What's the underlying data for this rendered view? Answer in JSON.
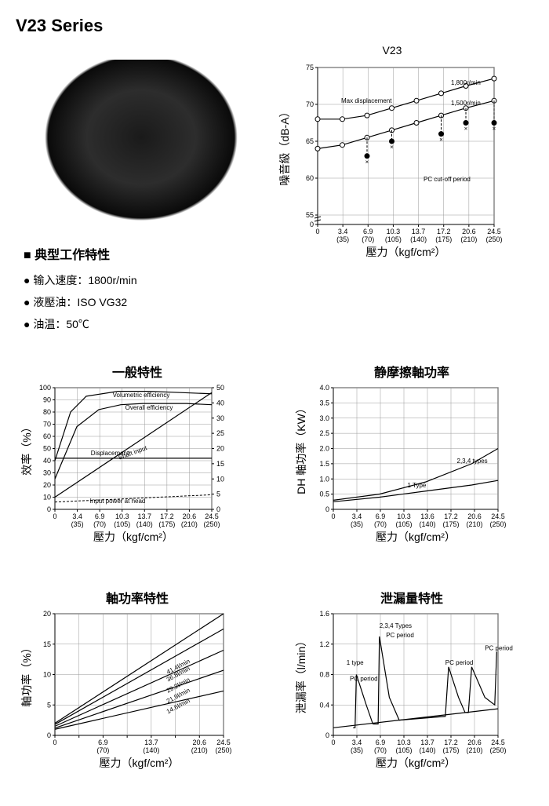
{
  "title": "V23 Series",
  "specs": {
    "heading": "典型工作特性",
    "items": [
      "输入速度：1800r/min",
      "液壓油：ISO VG32",
      "油温：50℃"
    ]
  },
  "noise_chart": {
    "title": "V23",
    "ylabel": "噪音級（dB-A）",
    "xlabel": "壓力（kgf/cm²）",
    "yticks": [
      0,
      55,
      60,
      65,
      70,
      75
    ],
    "xticks_mpa": [
      "0",
      "3.4",
      "6.9",
      "10.3",
      "13.7",
      "17.2",
      "20.6",
      "24.5"
    ],
    "xticks_kgf": [
      "",
      "(35)",
      "(70)",
      "(105)",
      "(140)",
      "(175)",
      "(210)",
      "(250)"
    ],
    "annotations": [
      "Max displacement",
      "1,800r/min",
      "1,500r/min",
      "PC cut-off period"
    ],
    "series1": [
      [
        0,
        68
      ],
      [
        35,
        68
      ],
      [
        70,
        68.5
      ],
      [
        105,
        69.5
      ],
      [
        140,
        70.5
      ],
      [
        175,
        71.5
      ],
      [
        210,
        72.5
      ],
      [
        250,
        73.5
      ]
    ],
    "series2": [
      [
        0,
        64
      ],
      [
        35,
        64.5
      ],
      [
        70,
        65.5
      ],
      [
        105,
        66.5
      ],
      [
        140,
        67.5
      ],
      [
        175,
        68.5
      ],
      [
        210,
        69.5
      ],
      [
        250,
        70.5
      ]
    ],
    "cutoff_pts": [
      [
        70,
        63
      ],
      [
        105,
        65
      ],
      [
        175,
        66
      ],
      [
        210,
        67.5
      ],
      [
        250,
        67.5
      ]
    ],
    "colors": {
      "line": "#000000",
      "marker_open": "#ffffff",
      "marker_fill": "#000000"
    }
  },
  "general_chart": {
    "title": "一般特性",
    "ylabel": "效率（%）",
    "xlabel": "壓力（kgf/cm²）",
    "yticks": [
      0,
      10,
      20,
      30,
      40,
      50,
      60,
      70,
      80,
      90,
      100
    ],
    "y2ticks": [
      0,
      5,
      10,
      15,
      20,
      25,
      30,
      40,
      50
    ],
    "xticks_mpa": [
      "0",
      "3.4",
      "6.9",
      "10.3",
      "13.7",
      "17.2",
      "20.6",
      "24.5"
    ],
    "xticks_kgf": [
      "",
      "(35)",
      "(70)",
      "(105)",
      "(140)",
      "(175)",
      "(210)",
      "(250)"
    ],
    "annotations": [
      "Volumetric efficiency",
      "Overall efficiency",
      "Displacement",
      "Shaft input",
      "Input power at head"
    ],
    "vol_eff": [
      [
        0,
        40
      ],
      [
        25,
        80
      ],
      [
        50,
        93
      ],
      [
        100,
        97
      ],
      [
        150,
        97
      ],
      [
        200,
        96
      ],
      [
        250,
        95
      ]
    ],
    "ovr_eff": [
      [
        0,
        25
      ],
      [
        35,
        68
      ],
      [
        70,
        82
      ],
      [
        105,
        86
      ],
      [
        140,
        87
      ],
      [
        175,
        87
      ],
      [
        210,
        87
      ],
      [
        250,
        86
      ]
    ],
    "shaft_in": [
      [
        0,
        5
      ],
      [
        250,
        48
      ]
    ],
    "displacement_y": 42,
    "input_head": [
      [
        0,
        3
      ],
      [
        250,
        6
      ]
    ]
  },
  "friction_chart": {
    "title": "静摩擦軸功率",
    "ylabel": "DH 軸功率（KW）",
    "xlabel": "壓力（kgf/cm²）",
    "yticks": [
      "0",
      "0.5",
      "1.0",
      "1.5",
      "2.0",
      "2.5",
      "3.0",
      "3.5",
      "4.0"
    ],
    "xticks_mpa": [
      "0",
      "3.4",
      "6.9",
      "10.3",
      "13.6",
      "17.2",
      "20.6",
      "24.5"
    ],
    "xticks_kgf": [
      "",
      "(35)",
      "(70)",
      "(105)",
      "(140)",
      "(175)",
      "(210)",
      "(250)"
    ],
    "annotations": [
      "2,3,4 types",
      "1 Type"
    ],
    "line234": [
      [
        0,
        0.3
      ],
      [
        70,
        0.5
      ],
      [
        140,
        0.9
      ],
      [
        210,
        1.5
      ],
      [
        250,
        2.0
      ]
    ],
    "line1": [
      [
        0,
        0.25
      ],
      [
        70,
        0.4
      ],
      [
        140,
        0.6
      ],
      [
        210,
        0.8
      ],
      [
        250,
        0.95
      ]
    ]
  },
  "power_chart": {
    "title": "軸功率特性",
    "ylabel": "軸功率（%）",
    "xlabel": "壓力（kgf/cm²）",
    "yticks": [
      0,
      5,
      10,
      15,
      20
    ],
    "xticks_mpa": [
      "0",
      "",
      "6.9",
      "",
      "13.7",
      "",
      "20.6",
      "24.5"
    ],
    "xticks_kgf": [
      "",
      "",
      "(70)",
      "",
      "(140)",
      "",
      "(210)",
      "(250)"
    ],
    "annotations": [
      "41.4l/min",
      "36.8l/min",
      "29.2l/min",
      "21.9l/min",
      "14.6l/min"
    ],
    "lines": [
      [
        [
          0,
          2
        ],
        [
          250,
          20
        ]
      ],
      [
        [
          0,
          1.8
        ],
        [
          250,
          17.5
        ]
      ],
      [
        [
          0,
          1.5
        ],
        [
          250,
          14
        ]
      ],
      [
        [
          0,
          1.2
        ],
        [
          250,
          10.7
        ]
      ],
      [
        [
          0,
          1
        ],
        [
          250,
          7.3
        ]
      ]
    ]
  },
  "leak_chart": {
    "title": "泄漏量特性",
    "ylabel": "泄漏率（l/min）",
    "xlabel": "壓力（kgf/cm²）",
    "yticks": [
      "0",
      "0.4",
      "0.8",
      "1.2",
      "1.6"
    ],
    "xticks_mpa": [
      "0",
      "3.4",
      "6.9",
      "10.3",
      "13.7",
      "17.2",
      "20.6",
      "24.5"
    ],
    "xticks_kgf": [
      "",
      "(35)",
      "(70)",
      "(105)",
      "(140)",
      "(175)",
      "(210)",
      "(250)"
    ],
    "annotations": [
      "2,3,4 Types",
      "PC period",
      "1 type",
      "PC period",
      "PC period",
      "PC period"
    ]
  }
}
